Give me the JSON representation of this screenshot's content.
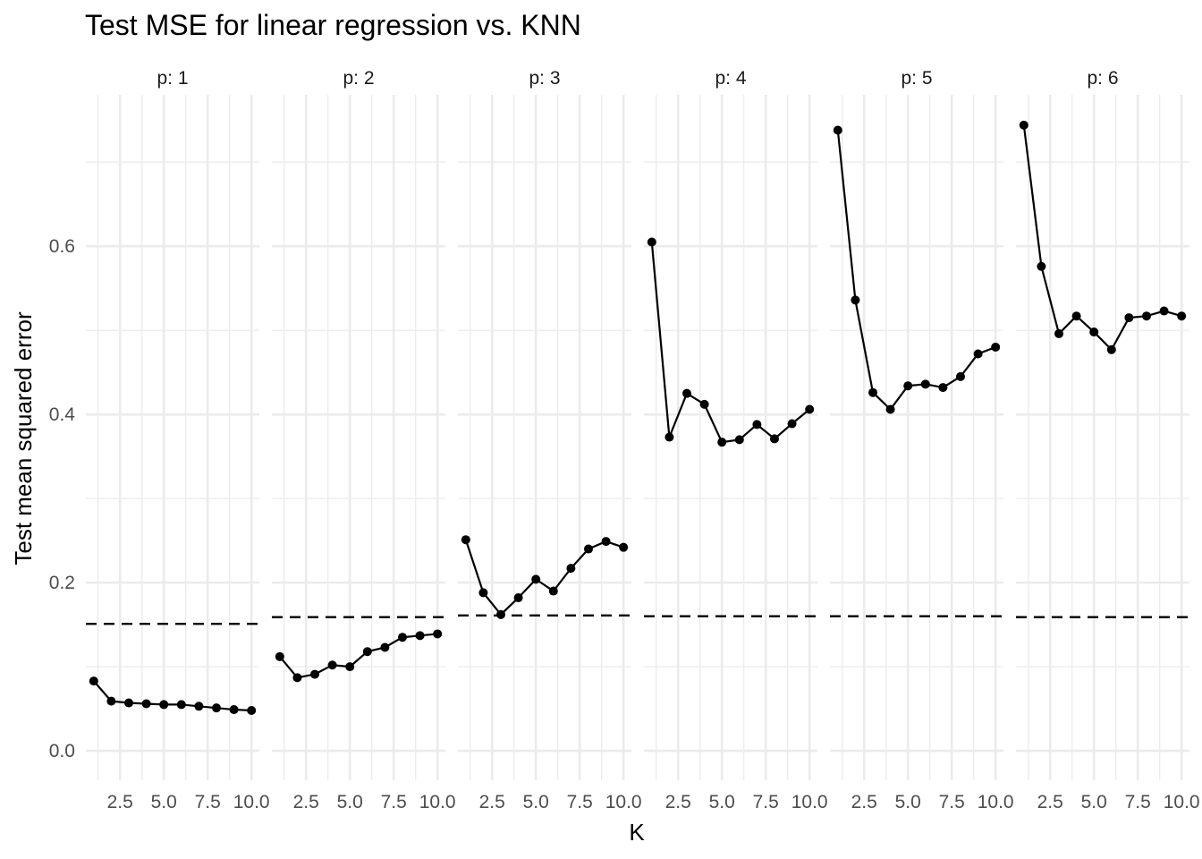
{
  "chart_data": {
    "type": "line",
    "title": "Test MSE for linear regression vs. KNN",
    "xlabel": "K",
    "ylabel": "Test mean squared error",
    "xlim": [
      0.55,
      10.45
    ],
    "ylim": [
      -0.035,
      0.78
    ],
    "x_ticks": [
      2.5,
      5.0,
      7.5,
      10.0
    ],
    "x_tick_labels": [
      "2.5",
      "5.0",
      "7.5",
      "10.0"
    ],
    "y_ticks": [
      0.0,
      0.2,
      0.4,
      0.6
    ],
    "y_tick_labels": [
      "0.0",
      "0.2",
      "0.4",
      "0.6"
    ],
    "grid": true,
    "facet_variable": "p",
    "facets": [
      {
        "label": "p: 1",
        "x": [
          1,
          2,
          3,
          4,
          5,
          6,
          7,
          8,
          9,
          10
        ],
        "knn_mse": [
          0.083,
          0.059,
          0.057,
          0.056,
          0.055,
          0.055,
          0.053,
          0.051,
          0.049,
          0.048
        ],
        "linear_regression_mse": 0.151
      },
      {
        "label": "p: 2",
        "x": [
          1,
          2,
          3,
          4,
          5,
          6,
          7,
          8,
          9,
          10
        ],
        "knn_mse": [
          0.112,
          0.087,
          0.091,
          0.102,
          0.1,
          0.118,
          0.123,
          0.135,
          0.137,
          0.139
        ],
        "linear_regression_mse": 0.159
      },
      {
        "label": "p: 3",
        "x": [
          1,
          2,
          3,
          4,
          5,
          6,
          7,
          8,
          9,
          10
        ],
        "knn_mse": [
          0.251,
          0.188,
          0.162,
          0.182,
          0.204,
          0.19,
          0.217,
          0.24,
          0.249,
          0.242
        ],
        "linear_regression_mse": 0.161
      },
      {
        "label": "p: 4",
        "x": [
          1,
          2,
          3,
          4,
          5,
          6,
          7,
          8,
          9,
          10
        ],
        "knn_mse": [
          0.605,
          0.373,
          0.425,
          0.412,
          0.367,
          0.37,
          0.388,
          0.371,
          0.389,
          0.406
        ],
        "linear_regression_mse": 0.16
      },
      {
        "label": "p: 5",
        "x": [
          1,
          2,
          3,
          4,
          5,
          6,
          7,
          8,
          9,
          10
        ],
        "knn_mse": [
          0.738,
          0.536,
          0.426,
          0.406,
          0.434,
          0.436,
          0.432,
          0.445,
          0.472,
          0.48
        ],
        "linear_regression_mse": 0.16
      },
      {
        "label": "p: 6",
        "x": [
          1,
          2,
          3,
          4,
          5,
          6,
          7,
          8,
          9,
          10
        ],
        "knn_mse": [
          0.744,
          0.576,
          0.496,
          0.517,
          0.498,
          0.477,
          0.515,
          0.517,
          0.523,
          0.517
        ],
        "linear_regression_mse": 0.159
      }
    ]
  }
}
